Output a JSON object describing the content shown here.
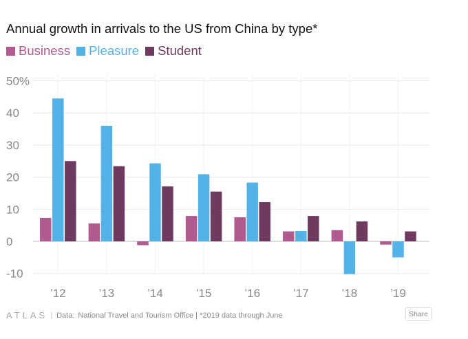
{
  "title": "Annual growth in arrivals to the US from China by type*",
  "colors": {
    "business": "#b05a90",
    "pleasure": "#53b3e6",
    "student": "#6f3a5f",
    "grid": "#e9e9e9",
    "axis_text": "#888888"
  },
  "chart_data": {
    "type": "bar",
    "title": "Annual growth in arrivals to the US from China by type*",
    "xlabel": "",
    "ylabel": "",
    "categories": [
      "’12",
      "’13",
      "’14",
      "’15",
      "’16",
      "’17",
      "’18",
      "’19"
    ],
    "series": [
      {
        "name": "Business",
        "color": "#b05a90",
        "values": [
          7.3,
          5.6,
          -1.2,
          7.9,
          7.5,
          3.1,
          3.5,
          -1.0
        ]
      },
      {
        "name": "Pleasure",
        "color": "#53b3e6",
        "values": [
          44.5,
          36.0,
          24.3,
          20.9,
          18.3,
          3.2,
          -10.2,
          -5.0
        ]
      },
      {
        "name": "Student",
        "color": "#6f3a5f",
        "values": [
          25.0,
          23.4,
          17.1,
          15.5,
          12.2,
          7.9,
          6.2,
          3.1
        ]
      }
    ],
    "yticks": [
      "-10",
      "0",
      "10",
      "20",
      "30",
      "40",
      "50%"
    ],
    "ytick_values": [
      -10,
      0,
      10,
      20,
      30,
      40,
      50
    ],
    "ylim": [
      -11,
      52
    ],
    "grid": true,
    "legend": "top-left"
  },
  "legend": [
    {
      "label": "Business",
      "color": "#b05a90"
    },
    {
      "label": "Pleasure",
      "color": "#53b3e6"
    },
    {
      "label": "Student",
      "color": "#6f3a5f"
    }
  ],
  "footer": {
    "brand": "ATLAS",
    "separator": "|",
    "source_label": "Data:",
    "source_text": "National Travel and Tourism Office | *2019 data through June",
    "share_label": "Share"
  }
}
